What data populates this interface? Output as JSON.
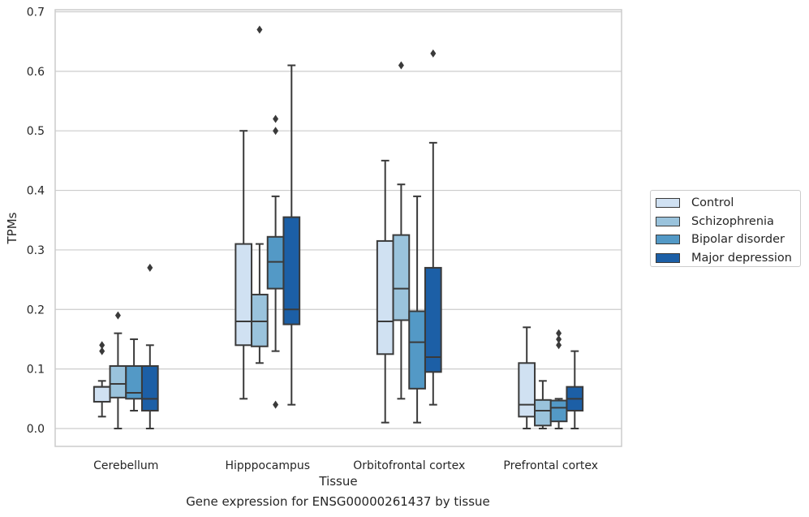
{
  "chart_data": {
    "type": "box",
    "caption": "Gene expression for ENSG00000261437 by tissue",
    "xlabel": "Tissue",
    "ylabel": "TPMs",
    "ylim": [
      -0.03,
      0.705
    ],
    "yticks": [
      "0.0",
      "0.1",
      "0.2",
      "0.3",
      "0.4",
      "0.5",
      "0.6",
      "0.7"
    ],
    "grid": "horizontal",
    "legend_placement": "right",
    "categories": [
      "Cerebellum",
      "Hipppocampus",
      "Orbitofrontal cortex",
      "Prefrontal cortex"
    ],
    "series": [
      {
        "name": "Control",
        "color": "#d0e1f2",
        "boxes": [
          {
            "whislo": 0.02,
            "q1": 0.045,
            "med": 0.07,
            "q3": 0.07,
            "whishi": 0.08,
            "fliers": [
              0.13,
              0.14
            ]
          },
          {
            "whislo": 0.05,
            "q1": 0.14,
            "med": 0.18,
            "q3": 0.31,
            "whishi": 0.5,
            "fliers": []
          },
          {
            "whislo": 0.01,
            "q1": 0.125,
            "med": 0.18,
            "q3": 0.315,
            "whishi": 0.45,
            "fliers": []
          },
          {
            "whislo": 0.0,
            "q1": 0.02,
            "med": 0.04,
            "q3": 0.11,
            "whishi": 0.17,
            "fliers": []
          }
        ]
      },
      {
        "name": "Schizophrenia",
        "color": "#9ac3dc",
        "boxes": [
          {
            "whislo": 0.0,
            "q1": 0.052,
            "med": 0.075,
            "q3": 0.105,
            "whishi": 0.16,
            "fliers": [
              0.19
            ]
          },
          {
            "whislo": 0.11,
            "q1": 0.138,
            "med": 0.18,
            "q3": 0.225,
            "whishi": 0.31,
            "fliers": [
              0.67
            ]
          },
          {
            "whislo": 0.05,
            "q1": 0.182,
            "med": 0.235,
            "q3": 0.325,
            "whishi": 0.41,
            "fliers": [
              0.61
            ]
          },
          {
            "whislo": 0.0,
            "q1": 0.005,
            "med": 0.03,
            "q3": 0.048,
            "whishi": 0.08,
            "fliers": []
          }
        ]
      },
      {
        "name": "Bipolar disorder",
        "color": "#5399c6",
        "boxes": [
          {
            "whislo": 0.03,
            "q1": 0.05,
            "med": 0.06,
            "q3": 0.105,
            "whishi": 0.15,
            "fliers": []
          },
          {
            "whislo": 0.13,
            "q1": 0.235,
            "med": 0.28,
            "q3": 0.322,
            "whishi": 0.39,
            "fliers": [
              0.04,
              0.5,
              0.52
            ]
          },
          {
            "whislo": 0.01,
            "q1": 0.067,
            "med": 0.145,
            "q3": 0.197,
            "whishi": 0.39,
            "fliers": []
          },
          {
            "whislo": 0.0,
            "q1": 0.012,
            "med": 0.035,
            "q3": 0.047,
            "whishi": 0.05,
            "fliers": [
              0.14,
              0.15,
              0.16
            ]
          }
        ]
      },
      {
        "name": "Major depression",
        "color": "#1c5fa6",
        "boxes": [
          {
            "whislo": 0.0,
            "q1": 0.03,
            "med": 0.05,
            "q3": 0.105,
            "whishi": 0.14,
            "fliers": [
              0.27
            ]
          },
          {
            "whislo": 0.04,
            "q1": 0.175,
            "med": 0.2,
            "q3": 0.355,
            "whishi": 0.61,
            "fliers": []
          },
          {
            "whislo": 0.04,
            "q1": 0.095,
            "med": 0.12,
            "q3": 0.27,
            "whishi": 0.48,
            "fliers": [
              0.63
            ]
          },
          {
            "whislo": 0.0,
            "q1": 0.03,
            "med": 0.05,
            "q3": 0.07,
            "whishi": 0.13,
            "fliers": []
          }
        ]
      }
    ]
  }
}
